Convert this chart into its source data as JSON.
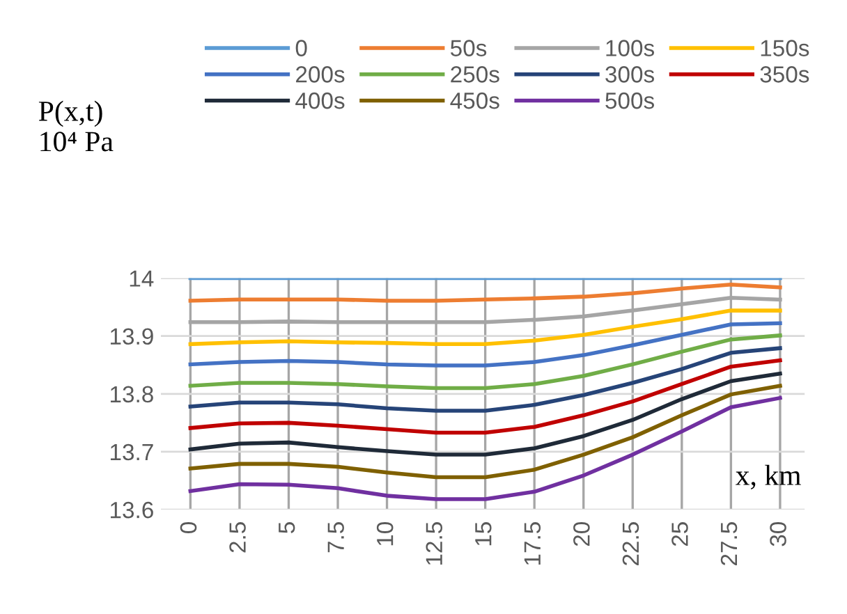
{
  "chart_data": {
    "type": "line",
    "ylabel": "P(x,t)\n10⁴ Pa",
    "xlabel": "x, km",
    "categories": [
      "0",
      "2.5",
      "5",
      "7.5",
      "10",
      "12.5",
      "15",
      "17.5",
      "20",
      "22.5",
      "25",
      "27.5",
      "30"
    ],
    "ylim": [
      13.6,
      14
    ],
    "yticks": [
      13.6,
      13.7,
      13.8,
      13.9,
      14
    ],
    "grid": true,
    "legend": "top",
    "marker": "none",
    "line_style": "solid",
    "series": [
      {
        "name": "0",
        "color": "#5b9bd5",
        "values": [
          14,
          14,
          14,
          14,
          14,
          14,
          14,
          14,
          14,
          14,
          14,
          14,
          14
        ]
      },
      {
        "name": "50s",
        "color": "#ed7d31",
        "values": [
          13.961,
          13.963,
          13.963,
          13.963,
          13.961,
          13.961,
          13.963,
          13.965,
          13.968,
          13.974,
          13.982,
          13.989,
          13.984
        ]
      },
      {
        "name": "100s",
        "color": "#a5a5a5",
        "values": [
          13.924,
          13.924,
          13.925,
          13.924,
          13.924,
          13.924,
          13.924,
          13.928,
          13.934,
          13.944,
          13.955,
          13.966,
          13.963
        ]
      },
      {
        "name": "150s",
        "color": "#ffc000",
        "values": [
          13.886,
          13.889,
          13.891,
          13.889,
          13.888,
          13.886,
          13.886,
          13.892,
          13.902,
          13.916,
          13.929,
          13.944,
          13.944
        ]
      },
      {
        "name": "200s",
        "color": "#4472c4",
        "values": [
          13.851,
          13.855,
          13.857,
          13.855,
          13.851,
          13.849,
          13.849,
          13.855,
          13.867,
          13.884,
          13.902,
          13.92,
          13.922
        ]
      },
      {
        "name": "250s",
        "color": "#70ad47",
        "values": [
          13.814,
          13.819,
          13.819,
          13.817,
          13.813,
          13.81,
          13.81,
          13.817,
          13.831,
          13.851,
          13.873,
          13.894,
          13.901
        ]
      },
      {
        "name": "300s",
        "color": "#264478",
        "values": [
          13.778,
          13.785,
          13.785,
          13.782,
          13.775,
          13.771,
          13.771,
          13.781,
          13.798,
          13.819,
          13.843,
          13.871,
          13.879
        ]
      },
      {
        "name": "350s",
        "color": "#c00000",
        "values": [
          13.741,
          13.749,
          13.75,
          13.745,
          13.739,
          13.733,
          13.733,
          13.743,
          13.763,
          13.787,
          13.817,
          13.847,
          13.858
        ]
      },
      {
        "name": "400s",
        "color": "#1f2a38",
        "values": [
          13.704,
          13.714,
          13.716,
          13.708,
          13.701,
          13.695,
          13.695,
          13.706,
          13.727,
          13.755,
          13.791,
          13.822,
          13.835
        ]
      },
      {
        "name": "450s",
        "color": "#7f6000",
        "values": [
          13.671,
          13.679,
          13.679,
          13.674,
          13.664,
          13.656,
          13.656,
          13.669,
          13.695,
          13.725,
          13.763,
          13.799,
          13.814
        ]
      },
      {
        "name": "500s",
        "color": "#7030a0",
        "values": [
          13.632,
          13.644,
          13.643,
          13.637,
          13.624,
          13.618,
          13.618,
          13.631,
          13.659,
          13.695,
          13.735,
          13.777,
          13.793
        ]
      }
    ]
  }
}
